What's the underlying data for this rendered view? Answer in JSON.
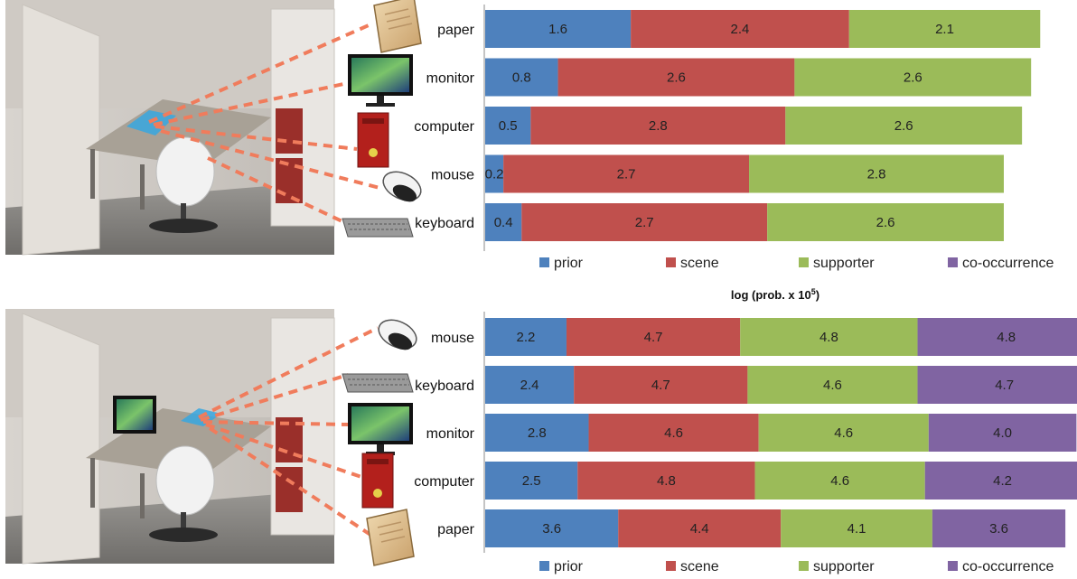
{
  "colors": {
    "prior": "#4e81bd",
    "scene": "#c0504d",
    "supporter": "#9bbb59",
    "co-occurrence": "#8064a2"
  },
  "icons": [
    "paper-icon",
    "monitor-icon",
    "computer-icon",
    "mouse-icon",
    "keyboard-icon"
  ],
  "chart_data": [
    {
      "type": "bar",
      "orientation": "horizontal",
      "stacked": true,
      "title": "",
      "categories": [
        "paper",
        "monitor",
        "computer",
        "mouse",
        "keyboard"
      ],
      "series": [
        {
          "name": "prior",
          "values": [
            1.6,
            0.8,
            0.5,
            0.2,
            0.4
          ]
        },
        {
          "name": "scene",
          "values": [
            2.4,
            2.6,
            2.8,
            2.7,
            2.7
          ]
        },
        {
          "name": "supporter",
          "values": [
            2.1,
            2.6,
            2.6,
            2.8,
            2.6
          ]
        }
      ],
      "legend": [
        "prior",
        "scene",
        "supporter",
        "co-occurrence"
      ],
      "legend_position": "bottom"
    },
    {
      "type": "bar",
      "orientation": "horizontal",
      "stacked": true,
      "title_main": "log (prob. x 10",
      "title_sup": "5",
      "title_end": ")",
      "categories": [
        "mouse",
        "keyboard",
        "monitor",
        "computer",
        "paper"
      ],
      "series": [
        {
          "name": "prior",
          "values": [
            2.2,
            2.4,
            2.8,
            2.5,
            3.6
          ]
        },
        {
          "name": "scene",
          "values": [
            4.7,
            4.7,
            4.6,
            4.8,
            4.4
          ]
        },
        {
          "name": "supporter",
          "values": [
            4.8,
            4.6,
            4.6,
            4.6,
            4.1
          ]
        },
        {
          "name": "co-occurrence",
          "values": [
            4.8,
            4.7,
            4.0,
            4.2,
            3.6
          ]
        }
      ],
      "legend": [
        "prior",
        "scene",
        "supporter",
        "co-occurrence"
      ],
      "legend_position": "bottom"
    }
  ]
}
